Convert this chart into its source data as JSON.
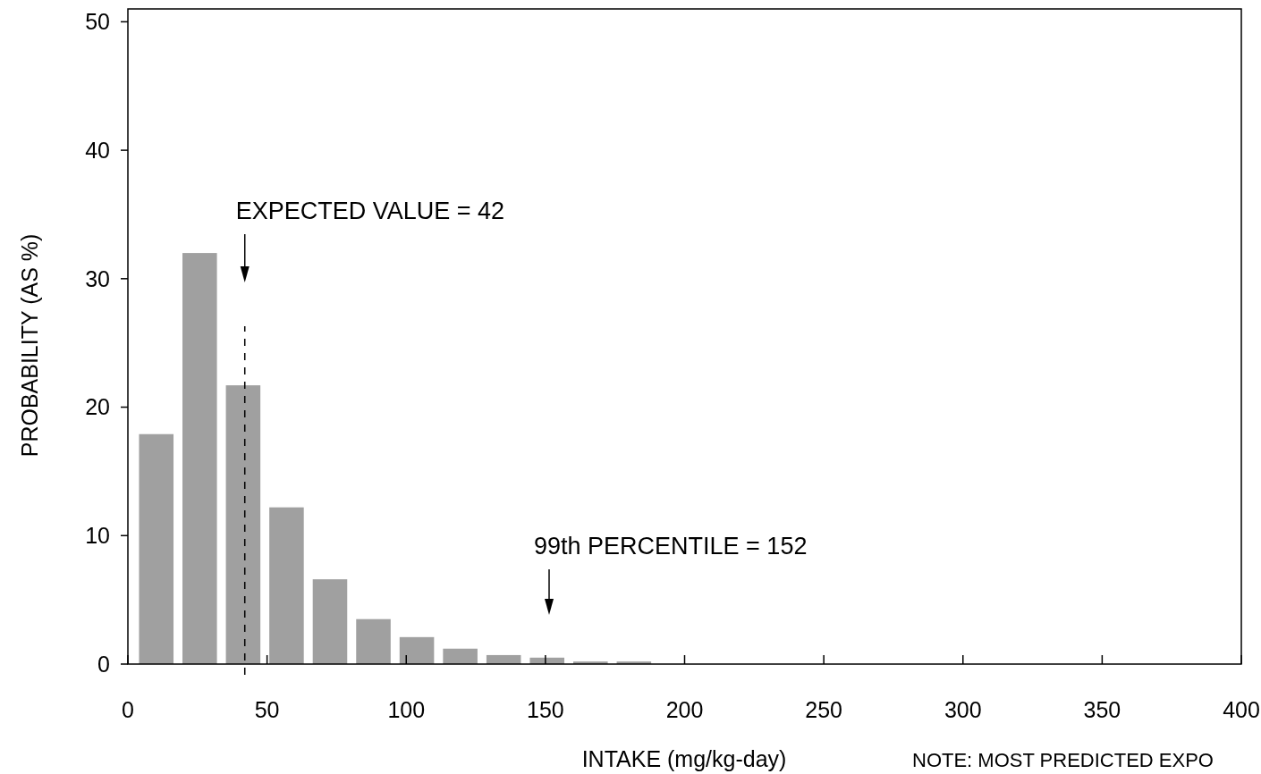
{
  "chart_data": {
    "type": "histogram",
    "xlabel": "INTAKE (mg/kg-day)",
    "ylabel": "PROBABILITY (AS %)",
    "bins": [
      2.4,
      18,
      33.6,
      49.2,
      64.8,
      80.4,
      96,
      111.6,
      127.2,
      142.8,
      158.4,
      174,
      189.6
    ],
    "values": [
      17.9,
      32.0,
      21.7,
      12.2,
      6.6,
      3.5,
      2.1,
      1.2,
      0.7,
      0.5,
      0.2,
      0.2
    ],
    "color": "#a0a0a0",
    "xlim": [
      0,
      400
    ],
    "xticks": [
      0,
      50,
      100,
      150,
      200,
      250,
      300,
      350,
      400
    ],
    "ylim": [
      0,
      51
    ],
    "yticks": [
      0,
      10,
      20,
      30,
      40,
      50
    ],
    "grid": false,
    "ref_lines": [
      {
        "axis": "x",
        "value": 42,
        "label": "EXPECTED VALUE = 42",
        "line_style": "dashed",
        "color": "#000000"
      }
    ],
    "annotations": [
      "99th PERCENTILE = 152",
      "NOTE:  MOST PREDICTED EXPO"
    ]
  }
}
